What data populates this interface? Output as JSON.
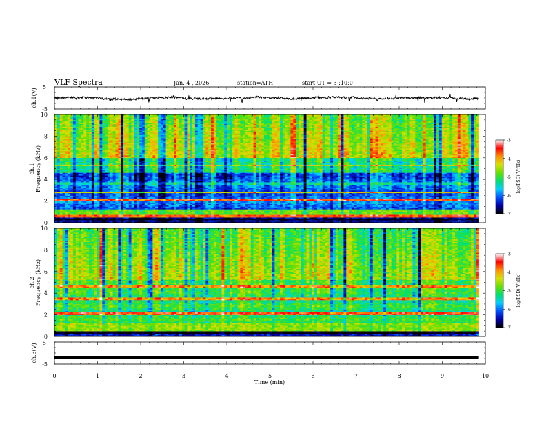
{
  "header": {
    "title": "VLF Spectra",
    "date": "Jan. 4 , 2026",
    "station": "station=ATH",
    "start": "start UT = 3 :10:0"
  },
  "chart_data": [
    {
      "type": "line",
      "name": "ch1-waveform",
      "ylabel": "ch.1(V)",
      "ylim": [
        -5,
        5
      ],
      "yticks": [
        "5",
        "-5"
      ],
      "xlim": [
        0,
        10
      ]
    },
    {
      "type": "heatmap",
      "name": "ch1-spectrogram",
      "ylabel_1": "ch.1",
      "ylabel_2": "Frequency (kHz)",
      "ylim": [
        0,
        10
      ],
      "yticks": [
        "0",
        "2",
        "4",
        "6",
        "8",
        "10"
      ],
      "xlim": [
        0,
        9.85
      ],
      "colorbar": {
        "label": "log(PSD)(V²/Hz)",
        "range": [
          -7,
          -3
        ],
        "ticks": [
          "-3",
          "-4",
          "-5",
          "-6",
          "-7"
        ]
      },
      "bands_khz": [
        {
          "f": 0.3,
          "level": -7.0
        },
        {
          "f": 0.6,
          "level": -3.6
        },
        {
          "f": 2.1,
          "level": -3.5
        },
        {
          "f": 2.8,
          "level": -4.2
        },
        {
          "f": 3.6,
          "level": -5.4
        },
        {
          "f": 5.3,
          "level": -4.4
        }
      ]
    },
    {
      "type": "heatmap",
      "name": "ch2-spectrogram",
      "ylabel_1": "ch.2",
      "ylabel_2": "Frequency (kHz)",
      "ylim": [
        0,
        10
      ],
      "yticks": [
        "0",
        "2",
        "4",
        "6",
        "8",
        "10"
      ],
      "xlim": [
        0,
        9.85
      ],
      "colorbar": {
        "label": "log(PSD)(V²/Hz)",
        "range": [
          -7,
          -3
        ],
        "ticks": [
          "-3",
          "-4",
          "-5",
          "-6",
          "-7"
        ]
      },
      "bands_khz": [
        {
          "f": 0.4,
          "level": -7.0
        },
        {
          "f": 2.1,
          "level": -3.5
        },
        {
          "f": 3.5,
          "level": -3.8
        },
        {
          "f": 4.6,
          "level": -3.8
        }
      ]
    },
    {
      "type": "line",
      "name": "ch3-waveform",
      "ylabel": "ch.3(V)",
      "ylim": [
        -5,
        5
      ],
      "yticks": [
        "5",
        "-5"
      ],
      "xlim": [
        0,
        10
      ],
      "level_v": -2.2
    }
  ],
  "xaxis": {
    "label": "Time (min)",
    "ticks": [
      "0",
      "1",
      "2",
      "3",
      "4",
      "5",
      "6",
      "7",
      "8",
      "9",
      "10"
    ]
  },
  "colors": {
    "scale": [
      "#000000",
      "#0000a8",
      "#0050ff",
      "#00d0ff",
      "#00e070",
      "#66e000",
      "#d8e000",
      "#ff9000",
      "#ff0000",
      "#ffffff"
    ]
  }
}
